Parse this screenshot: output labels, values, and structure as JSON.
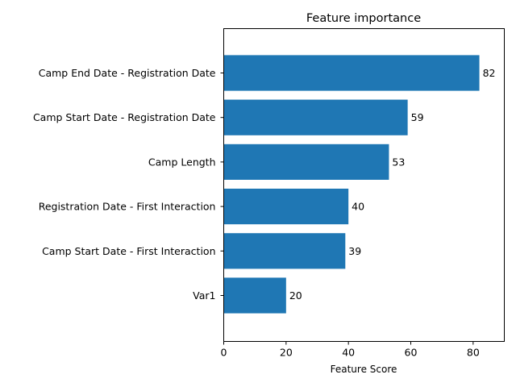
{
  "chart_data": {
    "type": "bar",
    "orientation": "horizontal",
    "title": "Feature importance",
    "xlabel": "Feature Score",
    "ylabel": "",
    "xlim": [
      0,
      90
    ],
    "xticks": [
      0,
      20,
      40,
      60,
      80
    ],
    "grid": false,
    "bar_color": "#1f77b4",
    "categories": [
      "Camp End Date - Registration Date",
      "Camp Start Date - Registration Date",
      "Camp Length",
      "Registration Date - First Interaction",
      "Camp Start Date - First Interaction",
      "Var1"
    ],
    "values": [
      82,
      59,
      53,
      40,
      39,
      20
    ]
  }
}
